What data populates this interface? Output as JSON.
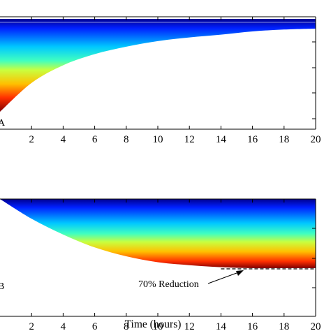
{
  "chart_data": [
    {
      "panel": "A",
      "type": "area",
      "xlim": [
        0,
        20
      ],
      "x_ticks": [
        "2",
        "4",
        "6",
        "8",
        "10",
        "12",
        "14",
        "16",
        "18",
        "20"
      ],
      "xlabel": "",
      "ylabel": "",
      "grid": false,
      "colormap": "jet",
      "band": {
        "top_curve": {
          "x": [
            0,
            20
          ],
          "y": [
            1.0,
            1.0
          ]
        },
        "outer_curve_x": [
          0,
          2,
          4,
          6,
          8,
          10,
          12,
          14,
          16,
          18,
          20
        ],
        "outer_curve_y": [
          0.0,
          0.31,
          0.5,
          0.62,
          0.7,
          0.76,
          0.8,
          0.83,
          0.85,
          0.87,
          0.88
        ]
      }
    },
    {
      "panel": "B",
      "type": "area",
      "xlim": [
        0,
        20
      ],
      "x_ticks": [
        "2",
        "4",
        "6",
        "8",
        "10",
        "12",
        "14",
        "16",
        "18",
        "20"
      ],
      "xlabel": "Time (hours)",
      "ylabel": "",
      "grid": false,
      "colormap": "jet",
      "band": {
        "top_curve": {
          "x": [
            0,
            20
          ],
          "y": [
            1.0,
            1.0
          ]
        },
        "outer_curve_x": [
          0,
          2,
          4,
          6,
          8,
          10,
          12,
          14,
          16,
          18,
          20
        ],
        "outer_curve_y": [
          1.0,
          0.8,
          0.64,
          0.51,
          0.42,
          0.36,
          0.33,
          0.31,
          0.3,
          0.3,
          0.3
        ]
      },
      "reference_line": {
        "y": 0.3,
        "x": [
          14,
          20
        ],
        "style": "dashed"
      },
      "annotation": {
        "text": "70% Reduction",
        "points_to": {
          "x": 15,
          "y": 0.3
        }
      }
    }
  ],
  "panel_labels": [
    "A",
    "B"
  ]
}
